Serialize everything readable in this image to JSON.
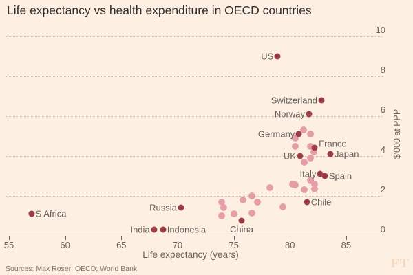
{
  "header": {
    "title": "Life expectancy vs health expenditure in OECD countries"
  },
  "footer": {
    "sources": "Sources: Max Roser; OECD; World Bank",
    "ft_logo": "FT"
  },
  "colors": {
    "background": "#fdf0e3",
    "labeled_dot": "#9b3c44",
    "other_dot": "#e59ea8",
    "gridline": "#cbbfae",
    "axis": "#66605c",
    "text": "#6d6458",
    "title_text": "#33302e",
    "ft_logo": "#f3d6c0"
  },
  "chart_data": {
    "type": "scatter",
    "title": "Life expectancy vs health expenditure in OECD countries",
    "xlabel": "Life expectancy (years)",
    "ylabel": "$'000 at PPP",
    "xlim": [
      55,
      88.5
    ],
    "ylim": [
      0,
      10
    ],
    "x_ticks": [
      55,
      60,
      65,
      70,
      75,
      80,
      85
    ],
    "y_ticks": [
      0,
      2,
      4,
      6,
      8,
      10
    ],
    "grid": "dotted horizontal",
    "legend": "none",
    "labeled_points": [
      {
        "name": "US",
        "le": 78.9,
        "ppp": 9.0,
        "side": "left"
      },
      {
        "name": "Switzerland",
        "le": 82.8,
        "ppp": 6.8,
        "side": "left"
      },
      {
        "name": "Norway",
        "le": 81.7,
        "ppp": 6.1,
        "side": "left"
      },
      {
        "name": "Germany",
        "le": 80.8,
        "ppp": 5.1,
        "side": "left"
      },
      {
        "name": "France",
        "le": 82.2,
        "ppp": 4.4,
        "side": "above-right"
      },
      {
        "name": "Japan",
        "le": 83.6,
        "ppp": 4.1,
        "side": "right"
      },
      {
        "name": "UK",
        "le": 80.9,
        "ppp": 4.0,
        "side": "left"
      },
      {
        "name": "Italy",
        "le": 82.7,
        "ppp": 3.1,
        "side": "left"
      },
      {
        "name": "Spain",
        "le": 83.1,
        "ppp": 3.0,
        "side": "right"
      },
      {
        "name": "Chile",
        "le": 81.5,
        "ppp": 1.7,
        "side": "right"
      },
      {
        "name": "Russia",
        "le": 70.3,
        "ppp": 1.4,
        "side": "left"
      },
      {
        "name": "S Africa",
        "le": 57.0,
        "ppp": 1.1,
        "side": "right"
      },
      {
        "name": "India",
        "le": 67.9,
        "ppp": 0.3,
        "side": "left"
      },
      {
        "name": "Indonesia",
        "le": 68.7,
        "ppp": 0.3,
        "side": "right"
      },
      {
        "name": "China",
        "le": 75.7,
        "ppp": 0.75,
        "side": "below"
      }
    ],
    "other_points": [
      {
        "le": 81.2,
        "ppp": 5.3
      },
      {
        "le": 81.8,
        "ppp": 5.1
      },
      {
        "le": 80.5,
        "ppp": 4.9
      },
      {
        "le": 80.5,
        "ppp": 4.5
      },
      {
        "le": 81.8,
        "ppp": 4.5
      },
      {
        "le": 82.1,
        "ppp": 4.2
      },
      {
        "le": 81.8,
        "ppp": 3.9
      },
      {
        "le": 81.3,
        "ppp": 3.7
      },
      {
        "le": 81.8,
        "ppp": 2.8
      },
      {
        "le": 82.2,
        "ppp": 2.6
      },
      {
        "le": 82.2,
        "ppp": 2.35
      },
      {
        "le": 81.3,
        "ppp": 2.3
      },
      {
        "le": 80.2,
        "ppp": 2.6
      },
      {
        "le": 80.5,
        "ppp": 2.55
      },
      {
        "le": 78.2,
        "ppp": 2.4
      },
      {
        "le": 76.6,
        "ppp": 2.0
      },
      {
        "le": 75.8,
        "ppp": 1.8
      },
      {
        "le": 73.9,
        "ppp": 1.7
      },
      {
        "le": 77.1,
        "ppp": 1.7
      },
      {
        "le": 74.1,
        "ppp": 1.4
      },
      {
        "le": 79.4,
        "ppp": 1.45
      },
      {
        "le": 73.9,
        "ppp": 1.0
      },
      {
        "le": 75.0,
        "ppp": 1.1
      },
      {
        "le": 76.6,
        "ppp": 1.15
      }
    ]
  }
}
